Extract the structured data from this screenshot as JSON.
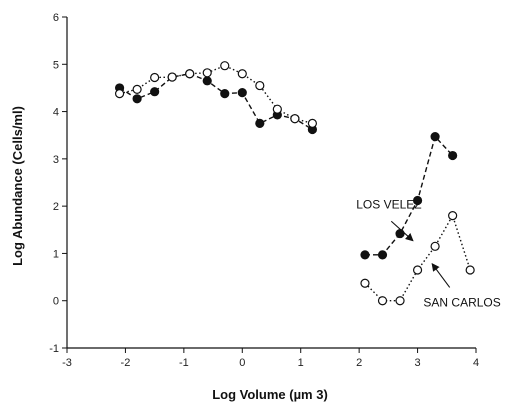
{
  "chart_data": {
    "type": "scatter",
    "xlabel": "Log Volume (µm 3)",
    "ylabel": "Log Abundance (Cells/ml)",
    "xlim": [
      -3,
      4
    ],
    "ylim": [
      -1,
      6
    ],
    "x_ticks": [
      -3,
      -2,
      -1,
      0,
      1,
      2,
      3,
      4
    ],
    "y_ticks": [
      -1,
      0,
      1,
      2,
      3,
      4,
      5,
      6
    ],
    "x_tick_labels": [
      "-3",
      "-2",
      "-1",
      "0",
      "1",
      "2",
      "3",
      "4"
    ],
    "y_tick_labels": [
      "-1",
      "0",
      "1",
      "2",
      "3",
      "4",
      "5",
      "6"
    ],
    "grid": false,
    "series": [
      {
        "marker": "filled-circle",
        "line": "dashed",
        "color": "#111111",
        "segments": [
          [
            {
              "x": -2.1,
              "y": 4.5
            },
            {
              "x": -1.8,
              "y": 4.27
            },
            {
              "x": -1.5,
              "y": 4.42
            },
            {
              "x": -1.2,
              "y": 4.73
            },
            {
              "x": -0.9,
              "y": 4.8
            },
            {
              "x": -0.6,
              "y": 4.65
            },
            {
              "x": -0.3,
              "y": 4.38
            },
            {
              "x": 0.0,
              "y": 4.4
            },
            {
              "x": 0.3,
              "y": 3.75
            },
            {
              "x": 0.6,
              "y": 3.93
            },
            {
              "x": 0.9,
              "y": 3.85
            },
            {
              "x": 1.2,
              "y": 3.62
            }
          ],
          [
            {
              "x": 2.1,
              "y": 0.97
            },
            {
              "x": 2.4,
              "y": 0.97
            },
            {
              "x": 2.7,
              "y": 1.42
            },
            {
              "x": 3.0,
              "y": 2.12
            },
            {
              "x": 3.3,
              "y": 3.47
            },
            {
              "x": 3.6,
              "y": 3.07
            }
          ]
        ]
      },
      {
        "marker": "open-circle",
        "line": "dotted",
        "color": "#111111",
        "segments": [
          [
            {
              "x": -2.1,
              "y": 4.38
            },
            {
              "x": -1.8,
              "y": 4.47
            },
            {
              "x": -1.5,
              "y": 4.72
            },
            {
              "x": -1.2,
              "y": 4.73
            },
            {
              "x": -0.9,
              "y": 4.8
            },
            {
              "x": -0.6,
              "y": 4.82
            },
            {
              "x": -0.3,
              "y": 4.97
            },
            {
              "x": 0.0,
              "y": 4.8
            },
            {
              "x": 0.3,
              "y": 4.55
            },
            {
              "x": 0.6,
              "y": 4.05
            },
            {
              "x": 0.9,
              "y": 3.85
            },
            {
              "x": 1.2,
              "y": 3.75
            }
          ],
          [
            {
              "x": 2.1,
              "y": 0.37
            },
            {
              "x": 2.4,
              "y": 0.0
            },
            {
              "x": 2.7,
              "y": 0.0
            },
            {
              "x": 3.0,
              "y": 0.65
            },
            {
              "x": 3.3,
              "y": 1.15
            },
            {
              "x": 3.6,
              "y": 1.8
            },
            {
              "x": 3.9,
              "y": 0.65
            }
          ]
        ]
      }
    ],
    "annotations": [
      {
        "text": "LOS VELEZ",
        "label_at": {
          "x": 1.95,
          "y": 1.95
        },
        "arrow_from": {
          "x": 2.55,
          "y": 1.68
        },
        "arrow_to": {
          "x": 2.92,
          "y": 1.27
        }
      },
      {
        "text": "SAN CARLOS",
        "label_at": {
          "x": 3.1,
          "y": -0.12
        },
        "arrow_from": {
          "x": 3.55,
          "y": 0.28
        },
        "arrow_to": {
          "x": 3.25,
          "y": 0.78
        }
      }
    ]
  }
}
